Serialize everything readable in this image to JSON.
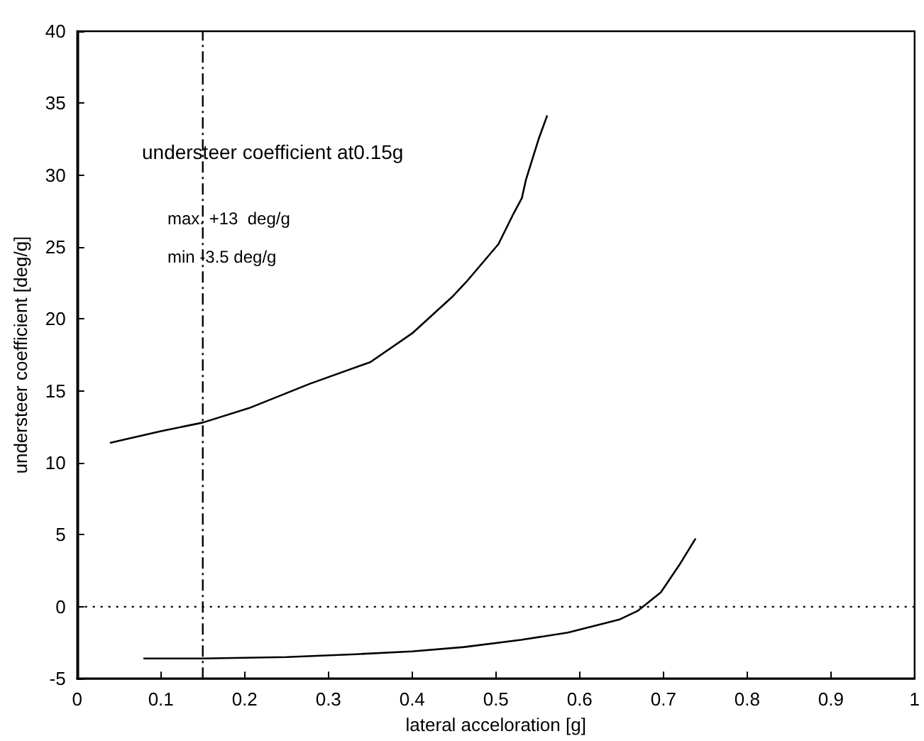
{
  "chart_data": {
    "type": "line",
    "xlabel": "lateral acceloration [g]",
    "ylabel": "understeer coefficient [deg/g]",
    "annotations": [
      "understeer coefficient at0.15g",
      "max. +13  deg/g",
      "min -3.5 deg/g"
    ],
    "series": [
      {
        "color": "#000000",
        "x": [
          0.04,
          0.1,
          0.15,
          0.205,
          0.278,
          0.35,
          0.4,
          0.449,
          0.465,
          0.503,
          0.52,
          0.531,
          0.536,
          0.551,
          0.561
        ],
        "values": [
          11.4,
          12.2,
          12.8,
          13.8,
          15.5,
          17.0,
          19.0,
          21.6,
          22.6,
          25.2,
          27.2,
          28.4,
          29.7,
          32.5,
          34.1
        ]
      },
      {
        "color": "#000000",
        "x": [
          0.08,
          0.15,
          0.25,
          0.333,
          0.4,
          0.462,
          0.53,
          0.586,
          0.647,
          0.669,
          0.697,
          0.719,
          0.738
        ],
        "values": [
          -3.6,
          -3.6,
          -3.5,
          -3.3,
          -3.1,
          -2.8,
          -2.3,
          -1.8,
          -0.9,
          -0.3,
          1.0,
          2.9,
          4.7
        ]
      }
    ],
    "xlim": [
      0,
      1
    ],
    "xticks": [
      0,
      0.1,
      0.2,
      0.3,
      0.4,
      0.5,
      0.6,
      0.7,
      0.8,
      0.9,
      1
    ],
    "ylim": [
      -5,
      40
    ],
    "yticks": [
      -5,
      0,
      5,
      10,
      15,
      20,
      25,
      30,
      35,
      40
    ],
    "ref_lines": [
      {
        "axis": "y",
        "value": 0,
        "line_style": "dotted"
      },
      {
        "axis": "x",
        "value": 0.15,
        "line_style": "dashed"
      }
    ],
    "grid": false,
    "marker": "none",
    "line_style": "solid"
  }
}
